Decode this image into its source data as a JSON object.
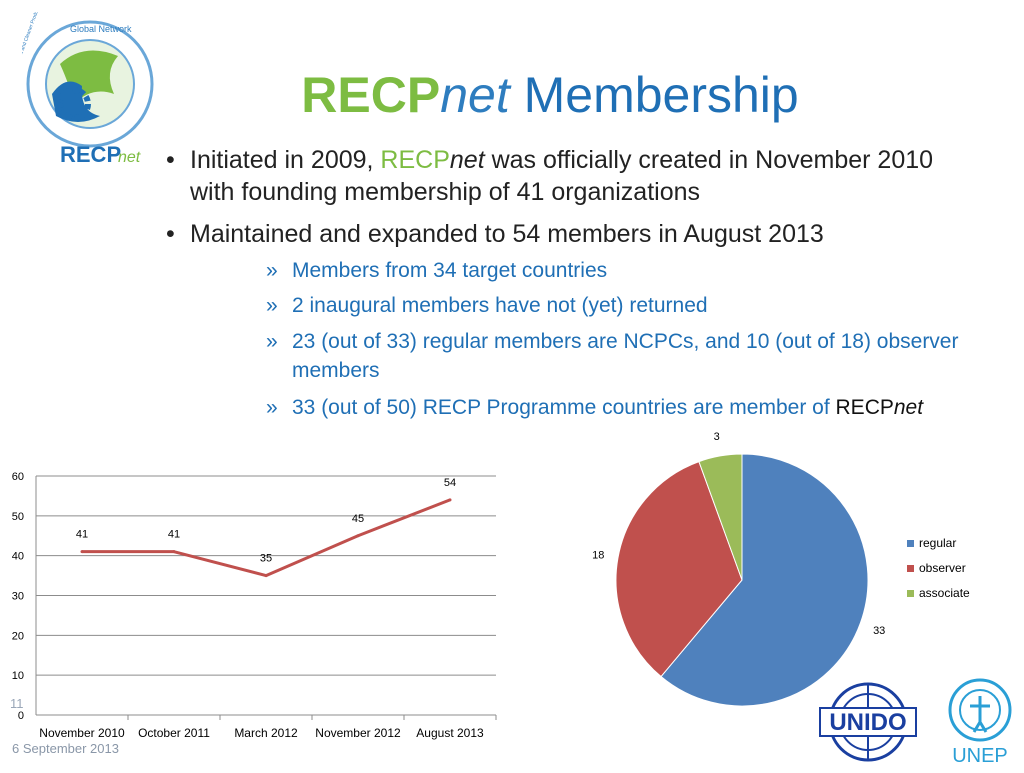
{
  "title": {
    "recp": "RECP",
    "net": "net",
    "rest": " Membership"
  },
  "logo": {
    "ring_text": "Global Network",
    "ring_text2": "Resource Efficient and Cleaner Production",
    "wordmark_recp": "RECP",
    "wordmark_net": "net"
  },
  "bullets": [
    {
      "pre": "Initiated in 2009, ",
      "recp": "RECP",
      "net": "net",
      "post": " was officially created in November 2010 with founding membership of 41 organizations"
    },
    {
      "text": "Maintained and expanded to 54 members in August 2013"
    }
  ],
  "bullet_marker": "•",
  "sub_marker": "»",
  "sub_bullets": [
    {
      "text": "Members from 34 target countries"
    },
    {
      "text": "2 inaugural members have not (yet) returned"
    },
    {
      "text": "23 (out of 33) regular members are NCPCs, and 10 (out of 18) observer members"
    },
    {
      "text": "33 (out of 50) RECP Programme countries are member of ",
      "recp": "RECP",
      "net": "net"
    }
  ],
  "footer": {
    "page_number": "11",
    "date": "6 September 2013"
  },
  "partner_logos": {
    "unido": "UNIDO",
    "unep": "UNEP"
  },
  "colors": {
    "green": "#7dbc42",
    "blue": "#1f6fb5",
    "line": "#c0504d",
    "regular": "#4f81bd",
    "observer": "#c0504d",
    "associate": "#9bbb59"
  },
  "chart_data": [
    {
      "type": "line",
      "categories": [
        "November 2010",
        "October 2011",
        "March 2012",
        "November 2012",
        "August 2013"
      ],
      "series": [
        {
          "values": [
            41,
            41,
            35,
            45,
            54
          ]
        }
      ],
      "data_labels": [
        "41",
        "41",
        "35",
        "45",
        "54"
      ],
      "ylim": [
        0,
        60
      ],
      "yticks": [
        "0",
        "10",
        "20",
        "30",
        "40",
        "50",
        "60"
      ],
      "grid": true,
      "legend": "none"
    },
    {
      "type": "pie",
      "slices": [
        {
          "label": "regular",
          "value": 33,
          "color": "#4f81bd"
        },
        {
          "label": "observer",
          "value": 18,
          "color": "#c0504d"
        },
        {
          "label": "associate",
          "value": 3,
          "color": "#9bbb59"
        }
      ],
      "legend": "right"
    }
  ]
}
